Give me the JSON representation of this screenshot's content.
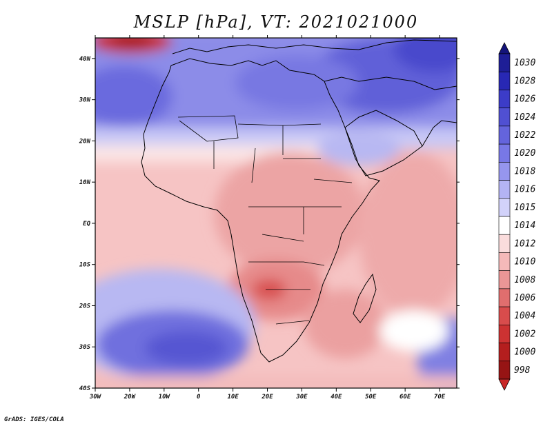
{
  "title": "MSLP [hPa], VT: 2021021000",
  "credit": "GrADS: IGES/COLA",
  "map": {
    "projection": "latlon",
    "lon_range": [
      -30,
      75
    ],
    "lat_range": [
      -40,
      45
    ],
    "lon_ticks": [
      "30W",
      "20W",
      "10W",
      "0",
      "10E",
      "20E",
      "30E",
      "40E",
      "50E",
      "60E",
      "70E"
    ],
    "lon_tick_values": [
      -30,
      -20,
      -10,
      0,
      10,
      20,
      30,
      40,
      50,
      60,
      70
    ],
    "lat_ticks": [
      "40S",
      "30S",
      "20S",
      "10S",
      "EQ",
      "10N",
      "20N",
      "30N",
      "40N"
    ],
    "lat_tick_values": [
      -40,
      -30,
      -20,
      -10,
      0,
      10,
      20,
      30,
      40
    ]
  },
  "colorbar": {
    "levels": [
      "1030",
      "1028",
      "1026",
      "1024",
      "1022",
      "1020",
      "1018",
      "1016",
      "1015",
      "1014",
      "1012",
      "1010",
      "1008",
      "1006",
      "1004",
      "1002",
      "1000",
      "998"
    ],
    "colors": [
      "#1e1e96",
      "#2828b4",
      "#3c3cc8",
      "#5050d2",
      "#6464dc",
      "#7878e6",
      "#9696ee",
      "#b4b4f4",
      "#d2d2fa",
      "#ffffff",
      "#fadcdc",
      "#f5b9b9",
      "#eb9696",
      "#e06e6e",
      "#d84c4c",
      "#cc3232",
      "#b41e1e",
      "#961414"
    ],
    "top_arrow_color": "#14147a",
    "bottom_arrow_color": "#c82828"
  }
}
